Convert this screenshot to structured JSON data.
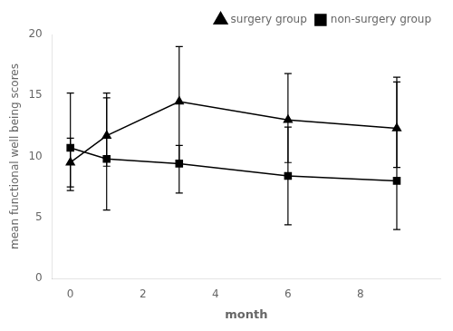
{
  "chart_data": {
    "type": "line",
    "xlabel": "month",
    "ylabel": "mean functional well being scores",
    "x": [
      0,
      1,
      3,
      6,
      9
    ],
    "xlim": [
      -0.5,
      10.2
    ],
    "xticks": [
      0,
      2,
      4,
      6,
      8
    ],
    "ylim": [
      0,
      20
    ],
    "yticks": [
      0,
      5,
      10,
      15,
      20
    ],
    "grid": false,
    "legend": "upper right",
    "series": [
      {
        "name": "surgery group",
        "color": "#000000",
        "marker": "triangle",
        "line_style": "solid",
        "values": [
          9.5,
          11.7,
          14.5,
          13.0,
          12.3
        ],
        "error_low": [
          2.0,
          2.5,
          4.8,
          3.5,
          3.2
        ],
        "error_high": [
          2.0,
          3.5,
          4.5,
          3.8,
          3.8
        ]
      },
      {
        "name": "non-surgery group",
        "color": "#000000",
        "marker": "square",
        "line_style": "solid",
        "values": [
          10.7,
          9.8,
          9.4,
          8.4,
          8.0
        ],
        "error_low": [
          3.5,
          4.2,
          2.4,
          4.0,
          4.0
        ],
        "error_high": [
          4.5,
          5.0,
          1.5,
          4.0,
          8.5
        ]
      }
    ]
  }
}
